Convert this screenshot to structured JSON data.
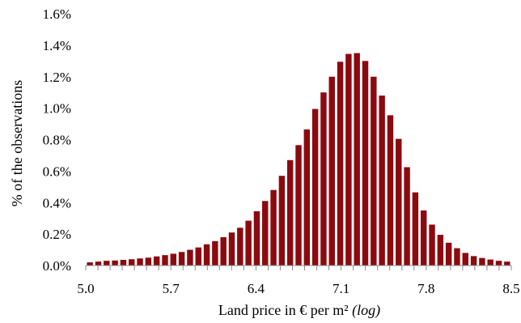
{
  "chart_data": {
    "type": "bar",
    "title": "",
    "xlabel": "Land price in € per m²",
    "xlabel_suffix": "(log)",
    "ylabel": "% of the observations",
    "xlim": [
      5.0,
      8.5
    ],
    "ylim": [
      0.0,
      1.6
    ],
    "x_ticks": [
      "5.0",
      "5.7",
      "6.4",
      "7.1",
      "7.8",
      "8.5"
    ],
    "y_ticks": [
      "0.0%",
      "0.2%",
      "0.4%",
      "0.6%",
      "0.8%",
      "1.0%",
      "1.2%",
      "1.4%",
      "1.6%"
    ],
    "bar_color": "#8b0a0f",
    "grid": false,
    "legend": "none",
    "bins": [
      {
        "x": 5.0,
        "y": 0.02
      },
      {
        "x": 5.07,
        "y": 0.025
      },
      {
        "x": 5.14,
        "y": 0.03
      },
      {
        "x": 5.21,
        "y": 0.032
      },
      {
        "x": 5.28,
        "y": 0.036
      },
      {
        "x": 5.35,
        "y": 0.04
      },
      {
        "x": 5.42,
        "y": 0.045
      },
      {
        "x": 5.49,
        "y": 0.05
      },
      {
        "x": 5.56,
        "y": 0.058
      },
      {
        "x": 5.63,
        "y": 0.066
      },
      {
        "x": 5.7,
        "y": 0.075
      },
      {
        "x": 5.77,
        "y": 0.086
      },
      {
        "x": 5.84,
        "y": 0.1
      },
      {
        "x": 5.91,
        "y": 0.115
      },
      {
        "x": 5.98,
        "y": 0.135
      },
      {
        "x": 6.05,
        "y": 0.155
      },
      {
        "x": 6.12,
        "y": 0.18
      },
      {
        "x": 6.19,
        "y": 0.21
      },
      {
        "x": 6.26,
        "y": 0.24
      },
      {
        "x": 6.33,
        "y": 0.285
      },
      {
        "x": 6.4,
        "y": 0.345
      },
      {
        "x": 6.47,
        "y": 0.41
      },
      {
        "x": 6.54,
        "y": 0.48
      },
      {
        "x": 6.61,
        "y": 0.57
      },
      {
        "x": 6.68,
        "y": 0.67
      },
      {
        "x": 6.75,
        "y": 0.765
      },
      {
        "x": 6.82,
        "y": 0.865
      },
      {
        "x": 6.89,
        "y": 0.995
      },
      {
        "x": 6.96,
        "y": 1.1
      },
      {
        "x": 7.03,
        "y": 1.2
      },
      {
        "x": 7.1,
        "y": 1.295
      },
      {
        "x": 7.17,
        "y": 1.345
      },
      {
        "x": 7.24,
        "y": 1.35
      },
      {
        "x": 7.31,
        "y": 1.3
      },
      {
        "x": 7.38,
        "y": 1.2
      },
      {
        "x": 7.45,
        "y": 1.08
      },
      {
        "x": 7.52,
        "y": 0.955
      },
      {
        "x": 7.59,
        "y": 0.805
      },
      {
        "x": 7.66,
        "y": 0.625
      },
      {
        "x": 7.73,
        "y": 0.465
      },
      {
        "x": 7.8,
        "y": 0.35
      },
      {
        "x": 7.87,
        "y": 0.26
      },
      {
        "x": 7.94,
        "y": 0.195
      },
      {
        "x": 8.01,
        "y": 0.145
      },
      {
        "x": 8.08,
        "y": 0.11
      },
      {
        "x": 8.15,
        "y": 0.08
      },
      {
        "x": 8.22,
        "y": 0.06
      },
      {
        "x": 8.29,
        "y": 0.048
      },
      {
        "x": 8.36,
        "y": 0.038
      },
      {
        "x": 8.43,
        "y": 0.03
      },
      {
        "x": 8.5,
        "y": 0.025
      }
    ]
  }
}
